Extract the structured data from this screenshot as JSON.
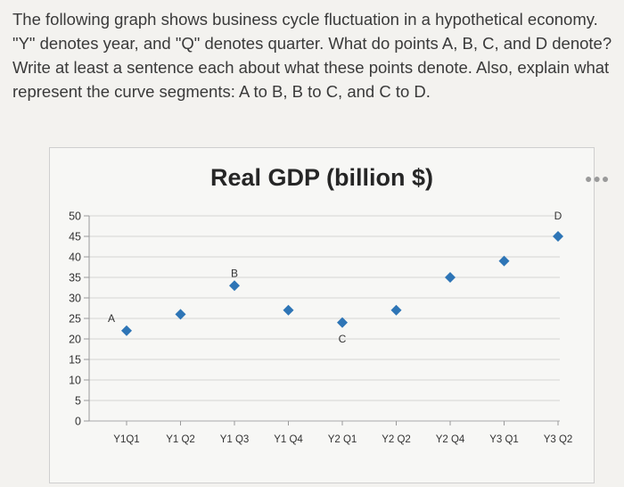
{
  "question": {
    "text": "The following graph shows business cycle fluctuation in a hypothetical economy. \"Y\" denotes year, and \"Q\" denotes quarter. What do points A, B, C, and D denote? Write at least a sentence each about what these points denote. Also, explain what represent the curve segments: A to B, B to C, and C to D."
  },
  "chart_data": {
    "type": "scatter",
    "title": "Real GDP (billion $)",
    "xlabel": "",
    "ylabel": "",
    "categories": [
      "Y1Q1",
      "Y1Q2",
      "Y1Q3",
      "Y1Q4",
      "Y2Q1",
      "Y2Q2",
      "Y2Q4",
      "Y3Q1",
      "Y3Q2"
    ],
    "values": [
      22,
      26,
      33,
      27,
      24,
      27,
      35,
      39,
      45
    ],
    "point_labels": [
      {
        "label": "A",
        "category": "Y1Q1",
        "value": 25
      },
      {
        "label": "B",
        "category": "Y1Q3",
        "value": 36
      },
      {
        "label": "C",
        "category": "Y2Q1",
        "value": 20
      },
      {
        "label": "D",
        "category": "Y3Q2",
        "value": 50
      }
    ],
    "yticks": [
      0,
      5,
      10,
      15,
      20,
      25,
      30,
      35,
      40,
      45,
      50
    ],
    "ylim": [
      0,
      50
    ],
    "grid": true,
    "marker_color": "#2e75b6",
    "more_icon": "more-options-icon"
  }
}
